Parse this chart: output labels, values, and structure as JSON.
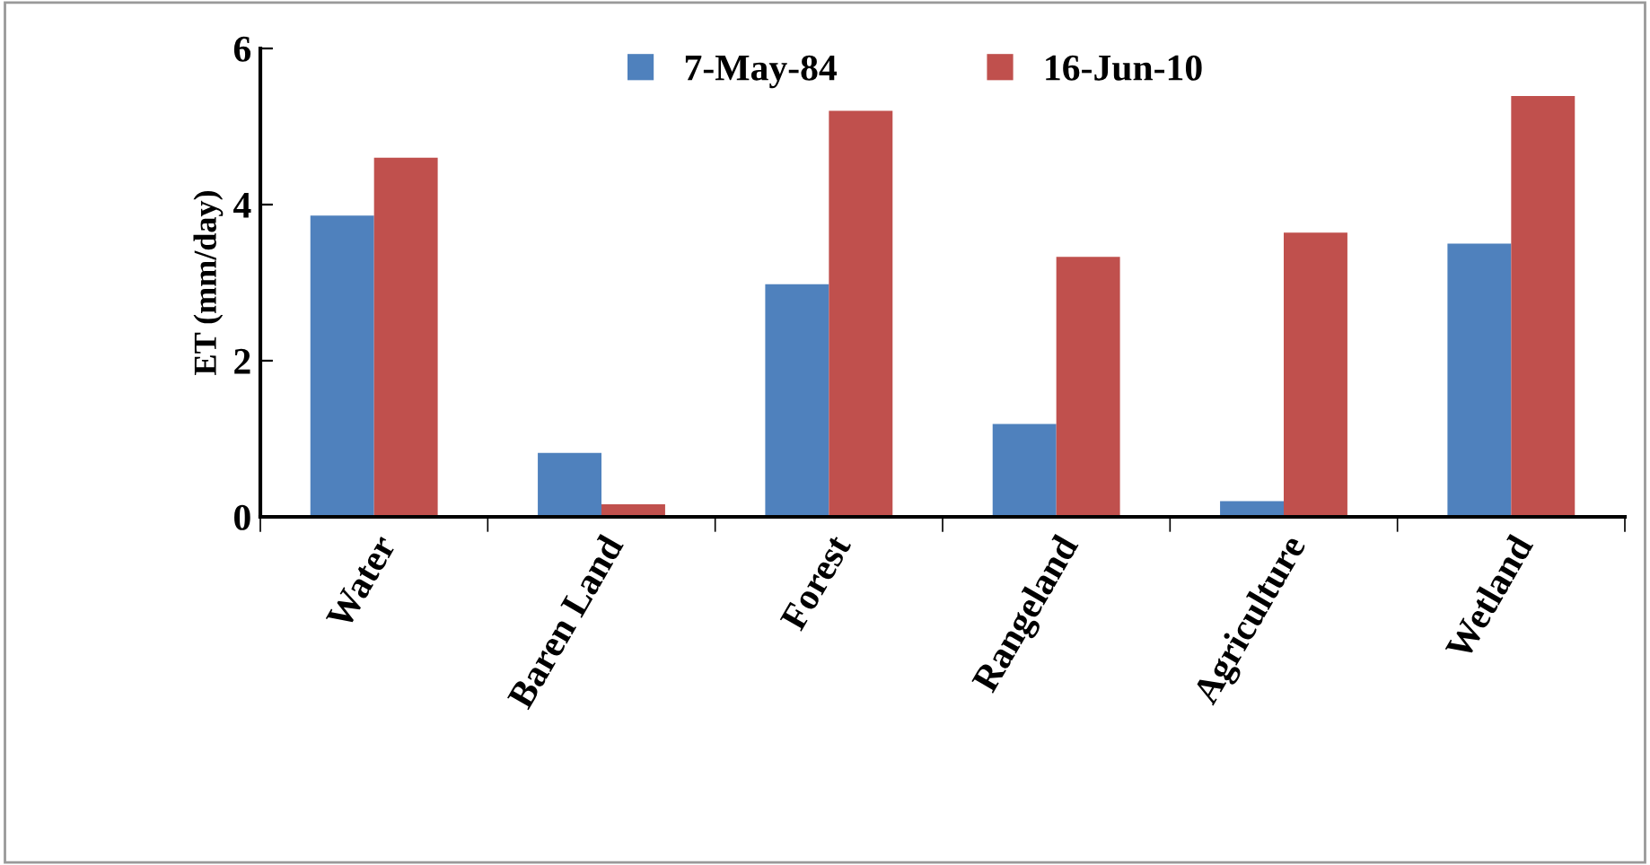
{
  "chart_data": {
    "type": "bar",
    "ylabel": "ET (mm/day)",
    "categories": [
      "Water",
      "Baren Land",
      "Forest",
      "Rangeland",
      "Agriculture",
      "Wetland"
    ],
    "series": [
      {
        "name": "7-May-84",
        "color": "#4f81bd",
        "values": [
          3.86,
          0.82,
          2.98,
          1.19,
          0.2,
          3.5
        ]
      },
      {
        "name": "16-Jun-10",
        "color": "#c0504d",
        "values": [
          4.6,
          0.16,
          5.2,
          3.33,
          3.64,
          5.39
        ]
      }
    ],
    "ylim": [
      0,
      6
    ],
    "yticks": [
      0,
      2,
      4,
      6
    ],
    "grid": false,
    "legend": "top"
  }
}
